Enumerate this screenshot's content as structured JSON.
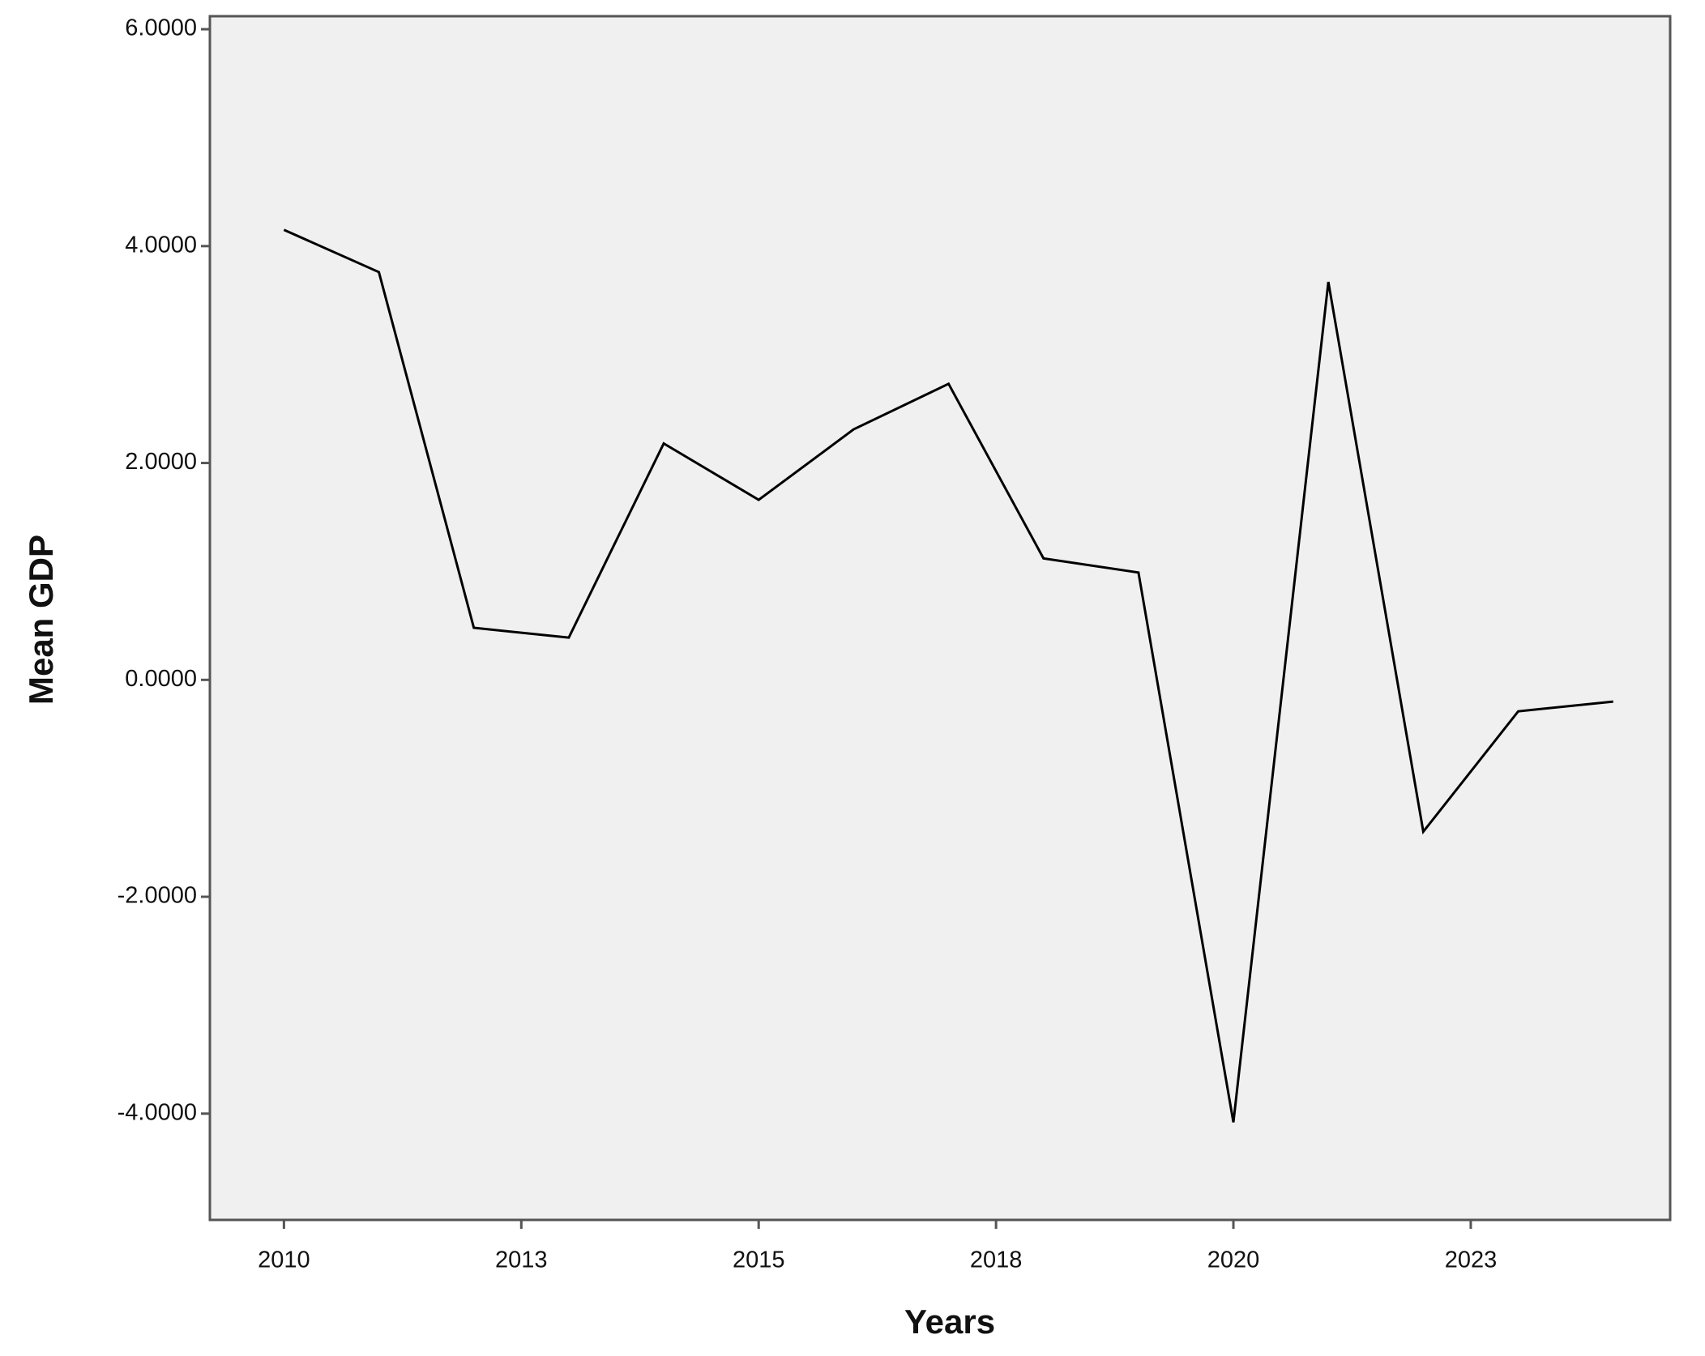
{
  "chart_data": {
    "type": "line",
    "x_label": "Years",
    "y_label": "Mean GDP",
    "x": [
      2010,
      2011,
      2012,
      2013,
      2014,
      2015,
      2016,
      2017,
      2018,
      2019,
      2020,
      2021,
      2022,
      2023,
      2024
    ],
    "values": [
      4.15,
      3.76,
      0.48,
      0.39,
      2.18,
      1.66,
      2.31,
      2.73,
      1.12,
      0.99,
      -4.08,
      3.67,
      -1.4,
      -0.29,
      -0.2
    ],
    "color": "#000000",
    "xlim": [
      2009.22,
      2024.6
    ],
    "xticks": [
      2010,
      {
        "value": 2012.5,
        "label": "2013"
      },
      2015,
      {
        "value": 2017.5,
        "label": "2018"
      },
      2020,
      {
        "value": 2022.5,
        "label": "2023"
      }
    ],
    "ylim": [
      -4.98,
      6.12
    ],
    "yticks": [
      {
        "value": -4,
        "label": "-4.0000"
      },
      {
        "value": -2,
        "label": "-2.0000"
      },
      {
        "value": 0,
        "label": "0.0000"
      },
      {
        "value": 2,
        "label": "2.0000"
      },
      {
        "value": 4,
        "label": "4.0000"
      },
      {
        "value": 6,
        "label": "6.0000"
      }
    ],
    "grid": false
  }
}
